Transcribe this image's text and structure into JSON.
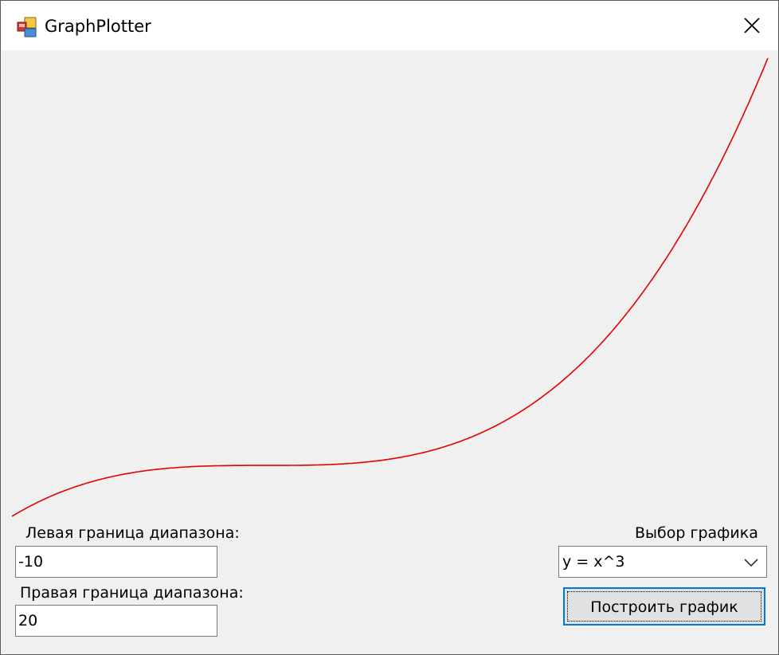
{
  "window": {
    "title": "GraphPlotter",
    "icon": "app-window-icon",
    "close_icon": "close-icon"
  },
  "controls": {
    "left_bound_label": "Левая граница диапазона:",
    "left_bound_value": "-10",
    "right_bound_label": "Правая граница диапазона:",
    "right_bound_value": "20",
    "graph_select_label": "Выбор графика",
    "graph_select_value": "y = x^3",
    "plot_button_label": "Построить график"
  },
  "plot": {
    "function": "x^3",
    "x_min": -10,
    "x_max": 20,
    "line_color": "#e60000",
    "background_color": "#f0f0f0"
  }
}
